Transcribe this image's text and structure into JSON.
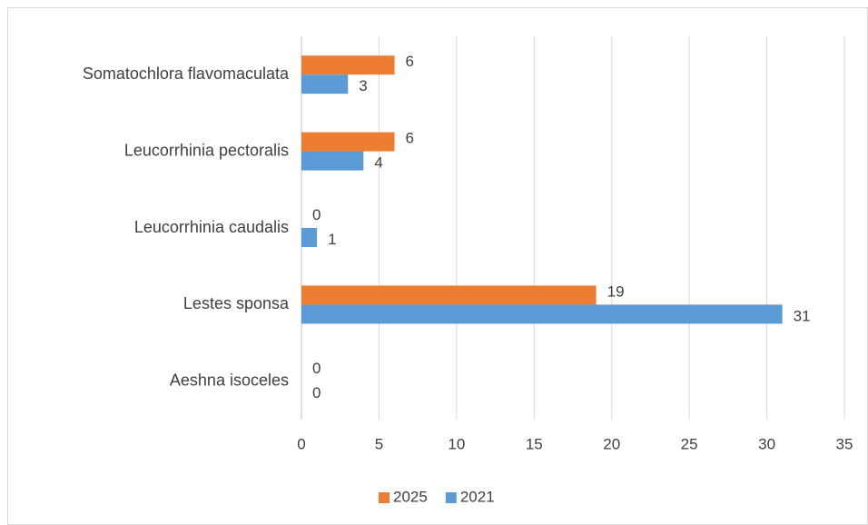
{
  "chart_data": {
    "type": "hbar",
    "categories": [
      "Aeshna isoceles",
      "Lestes sponsa",
      "Leucorrhinia caudalis",
      "Leucorrhinia pectoralis",
      "Somatochlora flavomaculata"
    ],
    "series": [
      {
        "name": "2025",
        "color": "#ed7d31",
        "values": [
          0,
          19,
          0,
          6,
          6
        ]
      },
      {
        "name": "2021",
        "color": "#5b9bd5",
        "values": [
          0,
          31,
          1,
          4,
          3
        ]
      }
    ],
    "xlim": [
      0,
      35
    ],
    "xticks": [
      0,
      5,
      10,
      15,
      20,
      25,
      30,
      35
    ],
    "grid": true,
    "legend": "bottom"
  }
}
